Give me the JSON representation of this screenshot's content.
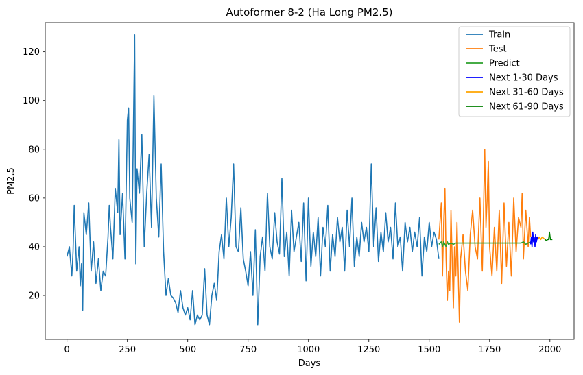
{
  "chart_data": {
    "type": "line",
    "title": "Autoformer 8-2 (Ha Long PM2.5)",
    "xlabel": "Days",
    "ylabel": "PM2.5",
    "xlim": [
      -90,
      2100
    ],
    "ylim": [
      2,
      132
    ],
    "xticks": [
      0,
      250,
      500,
      750,
      1000,
      1250,
      1500,
      1750,
      2000
    ],
    "yticks": [
      20,
      40,
      60,
      80,
      100,
      120
    ],
    "grid": false,
    "legend_position": "top-right",
    "series": [
      {
        "name": "Train",
        "color": "#1f77b4",
        "x": [
          0,
          10,
          20,
          25,
          30,
          40,
          50,
          55,
          60,
          65,
          70,
          80,
          90,
          100,
          110,
          120,
          130,
          140,
          150,
          160,
          170,
          175,
          180,
          190,
          200,
          210,
          215,
          220,
          230,
          240,
          250,
          255,
          260,
          270,
          280,
          285,
          290,
          300,
          310,
          320,
          330,
          340,
          350,
          360,
          370,
          380,
          390,
          400,
          410,
          420,
          430,
          440,
          450,
          460,
          470,
          480,
          490,
          500,
          510,
          520,
          530,
          540,
          550,
          560,
          570,
          580,
          590,
          600,
          610,
          620,
          630,
          640,
          650,
          660,
          670,
          680,
          690,
          700,
          710,
          720,
          730,
          740,
          750,
          760,
          770,
          780,
          790,
          800,
          810,
          820,
          830,
          840,
          850,
          860,
          870,
          880,
          890,
          900,
          910,
          920,
          930,
          940,
          950,
          960,
          970,
          980,
          990,
          1000,
          1010,
          1020,
          1030,
          1040,
          1050,
          1060,
          1070,
          1080,
          1090,
          1100,
          1110,
          1120,
          1130,
          1140,
          1150,
          1160,
          1170,
          1180,
          1190,
          1200,
          1210,
          1220,
          1230,
          1240,
          1250,
          1260,
          1270,
          1280,
          1290,
          1300,
          1310,
          1320,
          1330,
          1340,
          1350,
          1360,
          1370,
          1380,
          1390,
          1400,
          1410,
          1420,
          1430,
          1440,
          1450,
          1460,
          1470,
          1480,
          1490,
          1500,
          1510,
          1520,
          1530,
          1540
        ],
        "values": [
          36,
          40,
          28,
          38,
          57,
          30,
          40,
          24,
          33,
          14,
          54,
          45,
          58,
          30,
          42,
          25,
          35,
          22,
          30,
          28,
          44,
          57,
          48,
          35,
          64,
          54,
          84,
          45,
          62,
          35,
          92,
          97,
          60,
          50,
          127,
          33,
          72,
          62,
          86,
          40,
          62,
          78,
          48,
          102,
          60,
          44,
          74,
          38,
          20,
          27,
          20,
          19,
          17,
          13,
          22,
          15,
          12,
          15,
          10,
          22,
          8,
          12,
          10,
          12,
          31,
          12,
          8,
          20,
          25,
          18,
          38,
          45,
          35,
          60,
          40,
          52,
          74,
          40,
          38,
          56,
          35,
          30,
          24,
          38,
          20,
          47,
          8,
          36,
          44,
          30,
          62,
          40,
          35,
          54,
          42,
          37,
          68,
          36,
          46,
          28,
          55,
          38,
          44,
          50,
          34,
          58,
          26,
          60,
          32,
          46,
          36,
          52,
          28,
          48,
          40,
          57,
          30,
          45,
          36,
          52,
          42,
          48,
          30,
          55,
          40,
          60,
          32,
          44,
          36,
          50,
          42,
          48,
          38,
          74,
          40,
          56,
          34,
          46,
          38,
          54,
          42,
          48,
          35,
          58,
          40,
          44,
          30,
          50,
          42,
          48,
          38,
          46,
          40,
          52,
          28,
          44,
          38,
          50,
          40,
          46,
          43,
          35
        ]
      },
      {
        "name": "Test",
        "color": "#ff7f0e",
        "x": [
          1540,
          1550,
          1555,
          1560,
          1565,
          1570,
          1575,
          1580,
          1585,
          1590,
          1600,
          1605,
          1610,
          1615,
          1620,
          1625,
          1630,
          1640,
          1650,
          1660,
          1670,
          1680,
          1690,
          1700,
          1710,
          1720,
          1725,
          1730,
          1735,
          1740,
          1745,
          1750,
          1760,
          1770,
          1780,
          1790,
          1800,
          1810,
          1820,
          1830,
          1840,
          1850,
          1860,
          1870,
          1880,
          1885,
          1890,
          1900,
          1910,
          1915,
          1920
        ],
        "values": [
          43,
          58,
          28,
          50,
          64,
          35,
          18,
          30,
          22,
          55,
          15,
          40,
          28,
          50,
          30,
          9,
          35,
          45,
          30,
          22,
          45,
          55,
          40,
          35,
          60,
          30,
          55,
          80,
          48,
          60,
          75,
          40,
          28,
          48,
          30,
          55,
          25,
          58,
          32,
          50,
          28,
          60,
          38,
          52,
          48,
          62,
          35,
          55,
          40,
          52,
          44
        ]
      },
      {
        "name": "Predict",
        "color": "#2ca02c",
        "x": [
          1540,
          1550,
          1555,
          1560,
          1565,
          1570,
          1575,
          1580,
          1590,
          1600,
          1610,
          1620,
          1700,
          1800,
          1880,
          1890,
          1900,
          1910,
          1920
        ],
        "values": [
          41,
          42,
          40,
          42,
          41,
          40,
          42,
          41,
          41.5,
          41,
          41.5,
          41.5,
          41.5,
          41.5,
          41.5,
          42,
          41,
          41.5,
          42
        ]
      },
      {
        "name": "Next 1-30 Days",
        "color": "#0000ff",
        "x": [
          1920,
          1923,
          1926,
          1929,
          1932,
          1935,
          1938,
          1941,
          1944,
          1947,
          1950
        ],
        "values": [
          41,
          44,
          40,
          46,
          42,
          44,
          40,
          45,
          42,
          44,
          43
        ]
      },
      {
        "name": "Next 31-60 Days",
        "color": "#ffa500",
        "x": [
          1950,
          1956,
          1962,
          1968,
          1974,
          1980
        ],
        "values": [
          43,
          44,
          43,
          44,
          43.5,
          43
        ]
      },
      {
        "name": "Next 61-90 Days",
        "color": "#008000",
        "x": [
          1980,
          1986,
          1990,
          1994,
          1996,
          1998,
          2002,
          2006,
          2010
        ],
        "values": [
          43,
          42.5,
          43,
          43,
          44,
          46,
          43,
          43,
          43
        ]
      }
    ]
  }
}
